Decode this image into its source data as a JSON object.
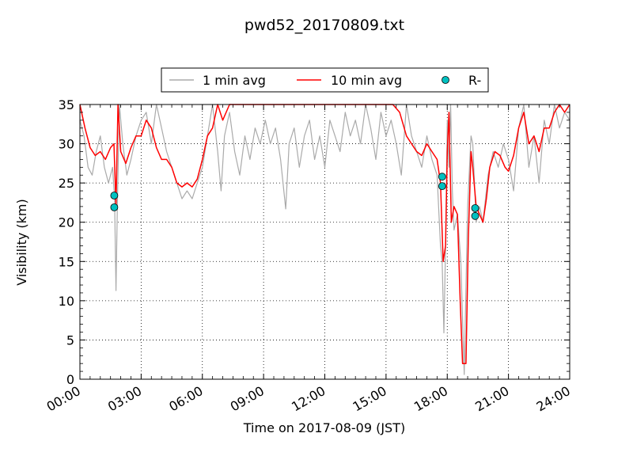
{
  "chart_data": {
    "type": "line",
    "title": "pwd52_20170809.txt",
    "xlabel": "Time on 2017-08-09 (JST)",
    "ylabel": "Visibility (km)",
    "xlim": [
      "00:00",
      "24:00"
    ],
    "ylim": [
      0,
      35
    ],
    "x_ticks": [
      "00:00",
      "03:00",
      "06:00",
      "09:00",
      "12:00",
      "15:00",
      "18:00",
      "21:00",
      "24:00"
    ],
    "y_ticks": [
      0,
      5,
      10,
      15,
      20,
      25,
      30,
      35
    ],
    "grid": true,
    "legend_position": "top-center",
    "series": [
      {
        "name": "1 min avg",
        "color": "#aaaaaa",
        "style": "line",
        "points": [
          [
            "00:00",
            33
          ],
          [
            "00:12",
            31
          ],
          [
            "00:24",
            27
          ],
          [
            "00:36",
            26
          ],
          [
            "00:48",
            29
          ],
          [
            "01:00",
            31
          ],
          [
            "01:12",
            27
          ],
          [
            "01:24",
            25
          ],
          [
            "01:36",
            27
          ],
          [
            "01:42",
            23
          ],
          [
            "01:46",
            11.3
          ],
          [
            "01:50",
            22
          ],
          [
            "01:56",
            35
          ],
          [
            "02:06",
            30
          ],
          [
            "02:18",
            26
          ],
          [
            "02:30",
            28
          ],
          [
            "02:45",
            31
          ],
          [
            "03:00",
            33
          ],
          [
            "03:15",
            34
          ],
          [
            "03:30",
            30
          ],
          [
            "03:45",
            35
          ],
          [
            "04:00",
            32
          ],
          [
            "04:15",
            29
          ],
          [
            "04:30",
            27
          ],
          [
            "04:45",
            25
          ],
          [
            "05:00",
            23
          ],
          [
            "05:15",
            24
          ],
          [
            "05:30",
            23
          ],
          [
            "05:45",
            25
          ],
          [
            "06:00",
            27
          ],
          [
            "06:15",
            31
          ],
          [
            "06:30",
            35
          ],
          [
            "06:45",
            29
          ],
          [
            "06:55",
            24
          ],
          [
            "07:05",
            31
          ],
          [
            "07:20",
            34
          ],
          [
            "07:35",
            29
          ],
          [
            "07:50",
            26
          ],
          [
            "08:05",
            31
          ],
          [
            "08:20",
            28
          ],
          [
            "08:35",
            32
          ],
          [
            "08:50",
            30
          ],
          [
            "09:05",
            33
          ],
          [
            "09:20",
            30
          ],
          [
            "09:35",
            32
          ],
          [
            "09:50",
            28
          ],
          [
            "10:05",
            21.7
          ],
          [
            "10:15",
            30
          ],
          [
            "10:30",
            32
          ],
          [
            "10:45",
            27
          ],
          [
            "11:00",
            31
          ],
          [
            "11:15",
            33
          ],
          [
            "11:30",
            28
          ],
          [
            "11:45",
            31
          ],
          [
            "12:00",
            27
          ],
          [
            "12:15",
            33
          ],
          [
            "12:30",
            31
          ],
          [
            "12:45",
            29
          ],
          [
            "13:00",
            34
          ],
          [
            "13:15",
            31
          ],
          [
            "13:30",
            33
          ],
          [
            "13:45",
            30
          ],
          [
            "14:00",
            35
          ],
          [
            "14:15",
            32
          ],
          [
            "14:30",
            28
          ],
          [
            "14:45",
            34
          ],
          [
            "15:00",
            31
          ],
          [
            "15:15",
            33
          ],
          [
            "15:30",
            30
          ],
          [
            "15:45",
            26
          ],
          [
            "16:00",
            35
          ],
          [
            "16:15",
            31
          ],
          [
            "16:30",
            29
          ],
          [
            "16:45",
            27
          ],
          [
            "17:00",
            31
          ],
          [
            "17:15",
            28
          ],
          [
            "17:30",
            26
          ],
          [
            "17:40",
            17
          ],
          [
            "17:45",
            15
          ],
          [
            "17:50",
            5.9
          ],
          [
            "17:55",
            17
          ],
          [
            "18:00",
            33
          ],
          [
            "18:05",
            27
          ],
          [
            "18:10",
            35
          ],
          [
            "18:15",
            24
          ],
          [
            "18:20",
            19
          ],
          [
            "18:30",
            21
          ],
          [
            "18:40",
            15
          ],
          [
            "18:50",
            0.6
          ],
          [
            "19:00",
            22
          ],
          [
            "19:10",
            31
          ],
          [
            "19:15",
            30
          ],
          [
            "19:25",
            20
          ],
          [
            "19:35",
            22
          ],
          [
            "19:45",
            20
          ],
          [
            "20:00",
            26
          ],
          [
            "20:15",
            29
          ],
          [
            "20:30",
            27
          ],
          [
            "20:45",
            30
          ],
          [
            "21:00",
            28
          ],
          [
            "21:15",
            24
          ],
          [
            "21:30",
            32
          ],
          [
            "21:45",
            35
          ],
          [
            "22:00",
            27
          ],
          [
            "22:15",
            31
          ],
          [
            "22:30",
            25
          ],
          [
            "22:45",
            33
          ],
          [
            "23:00",
            30
          ],
          [
            "23:15",
            35
          ],
          [
            "23:30",
            32
          ],
          [
            "23:45",
            34
          ],
          [
            "24:00",
            33
          ]
        ]
      },
      {
        "name": "10 min avg",
        "color": "#ff0000",
        "style": "line",
        "points": [
          [
            "00:00",
            35
          ],
          [
            "00:15",
            32
          ],
          [
            "00:30",
            29.5
          ],
          [
            "00:45",
            28.5
          ],
          [
            "01:00",
            29
          ],
          [
            "01:15",
            28
          ],
          [
            "01:30",
            29.5
          ],
          [
            "01:40",
            30
          ],
          [
            "01:46",
            22
          ],
          [
            "01:52",
            35
          ],
          [
            "02:00",
            29
          ],
          [
            "02:15",
            27.5
          ],
          [
            "02:30",
            29.5
          ],
          [
            "02:45",
            31
          ],
          [
            "03:00",
            31
          ],
          [
            "03:15",
            33
          ],
          [
            "03:30",
            32
          ],
          [
            "03:45",
            29.5
          ],
          [
            "04:00",
            28
          ],
          [
            "04:15",
            28
          ],
          [
            "04:30",
            27
          ],
          [
            "04:45",
            25
          ],
          [
            "05:00",
            24.5
          ],
          [
            "05:15",
            25
          ],
          [
            "05:30",
            24.5
          ],
          [
            "05:45",
            25.5
          ],
          [
            "06:00",
            28
          ],
          [
            "06:15",
            31
          ],
          [
            "06:30",
            32
          ],
          [
            "06:45",
            35
          ],
          [
            "07:00",
            33
          ],
          [
            "07:20",
            35
          ],
          [
            "08:00",
            35
          ],
          [
            "10:00",
            35
          ],
          [
            "12:00",
            35
          ],
          [
            "14:00",
            35
          ],
          [
            "15:20",
            35
          ],
          [
            "15:40",
            34
          ],
          [
            "16:00",
            31
          ],
          [
            "16:15",
            30
          ],
          [
            "16:30",
            29
          ],
          [
            "16:45",
            28.5
          ],
          [
            "17:00",
            30
          ],
          [
            "17:15",
            29
          ],
          [
            "17:30",
            28
          ],
          [
            "17:40",
            25
          ],
          [
            "17:48",
            15
          ],
          [
            "17:55",
            17
          ],
          [
            "18:00",
            29
          ],
          [
            "18:05",
            34
          ],
          [
            "18:08",
            28
          ],
          [
            "18:12",
            20
          ],
          [
            "18:20",
            22
          ],
          [
            "18:30",
            21
          ],
          [
            "18:38",
            10
          ],
          [
            "18:45",
            2
          ],
          [
            "18:55",
            2
          ],
          [
            "19:02",
            18
          ],
          [
            "19:10",
            29
          ],
          [
            "19:15",
            27
          ],
          [
            "19:25",
            22
          ],
          [
            "19:35",
            21
          ],
          [
            "19:45",
            20
          ],
          [
            "19:55",
            23
          ],
          [
            "20:05",
            27
          ],
          [
            "20:20",
            29
          ],
          [
            "20:35",
            28.5
          ],
          [
            "20:50",
            27
          ],
          [
            "21:00",
            26.5
          ],
          [
            "21:15",
            28.5
          ],
          [
            "21:30",
            32
          ],
          [
            "21:45",
            34
          ],
          [
            "22:00",
            30
          ],
          [
            "22:15",
            31
          ],
          [
            "22:30",
            29
          ],
          [
            "22:45",
            32
          ],
          [
            "23:00",
            32
          ],
          [
            "23:15",
            34
          ],
          [
            "23:30",
            35
          ],
          [
            "23:45",
            34
          ],
          [
            "24:00",
            35
          ]
        ]
      },
      {
        "name": "R-",
        "color": "#00c0c0",
        "style": "markers",
        "points": [
          [
            "01:41",
            23.4
          ],
          [
            "01:41",
            21.9
          ],
          [
            "17:45",
            25.8
          ],
          [
            "17:45",
            24.6
          ],
          [
            "19:22",
            21.8
          ],
          [
            "19:22",
            20.8
          ]
        ]
      }
    ]
  }
}
